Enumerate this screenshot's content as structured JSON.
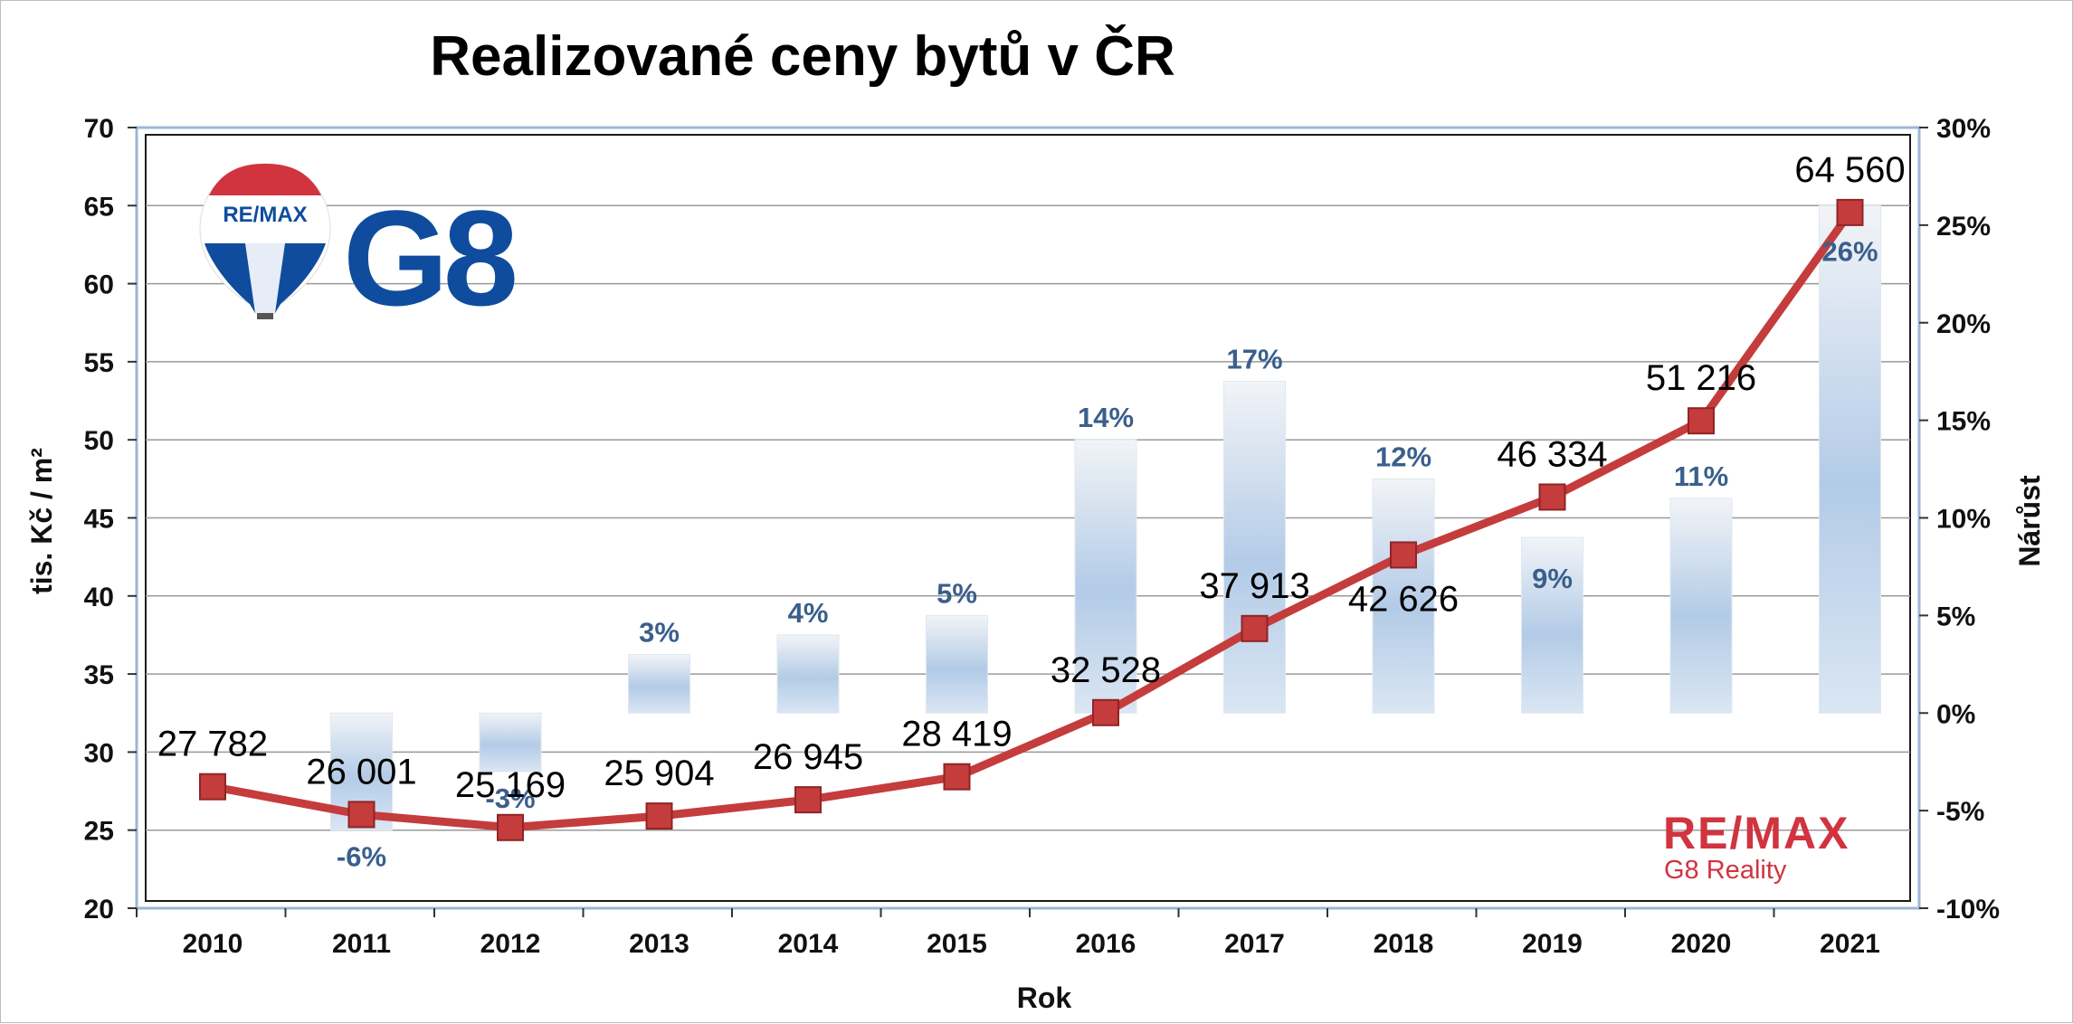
{
  "chart_data": {
    "type": "bar",
    "title": "Realizované ceny bytů v ČR",
    "xlabel": "Rok",
    "ylabel": "tis. Kč / m²",
    "y2label": "Nárůst",
    "categories": [
      "2010",
      "2011",
      "2012",
      "2013",
      "2014",
      "2015",
      "2016",
      "2017",
      "2018",
      "2019",
      "2020",
      "2021"
    ],
    "ylim": [
      20,
      70
    ],
    "yticks": [
      "20",
      "25",
      "30",
      "35",
      "40",
      "45",
      "50",
      "55",
      "60",
      "65",
      "70"
    ],
    "y2lim": [
      -10,
      30
    ],
    "y2ticks": [
      "-10%",
      "-5%",
      "0%",
      "5%",
      "10%",
      "15%",
      "20%",
      "25%",
      "30%"
    ],
    "grid": true,
    "series": [
      {
        "type": "line",
        "axis": "left",
        "values": [
          27.782,
          26.001,
          25.169,
          25.904,
          26.945,
          28.419,
          32.528,
          37.913,
          42.626,
          46.334,
          51.216,
          64.56
        ],
        "labels": [
          "27 782",
          "26 001",
          "25 169",
          "25 904",
          "26 945",
          "28 419",
          "32 528",
          "37 913",
          "42 626",
          "46 334",
          "51 216",
          "64 560"
        ],
        "color": "#c43c3c"
      },
      {
        "type": "bar",
        "axis": "right",
        "values": [
          null,
          -6,
          -3,
          3,
          4,
          5,
          14,
          17,
          12,
          9,
          11,
          26
        ],
        "labels": [
          "",
          "-6%",
          "-3%",
          "3%",
          "4%",
          "5%",
          "14%",
          "17%",
          "12%",
          "9%",
          "11%",
          "26%"
        ],
        "color": "#a9c3e2"
      }
    ]
  },
  "brand": {
    "logo_word": "RE/MAX",
    "logo_number": "G8",
    "footer_word": "RE/MAX",
    "footer_sub": "G8 Reality",
    "color_blue": "#0f4c9e",
    "color_red": "#d1333f"
  }
}
